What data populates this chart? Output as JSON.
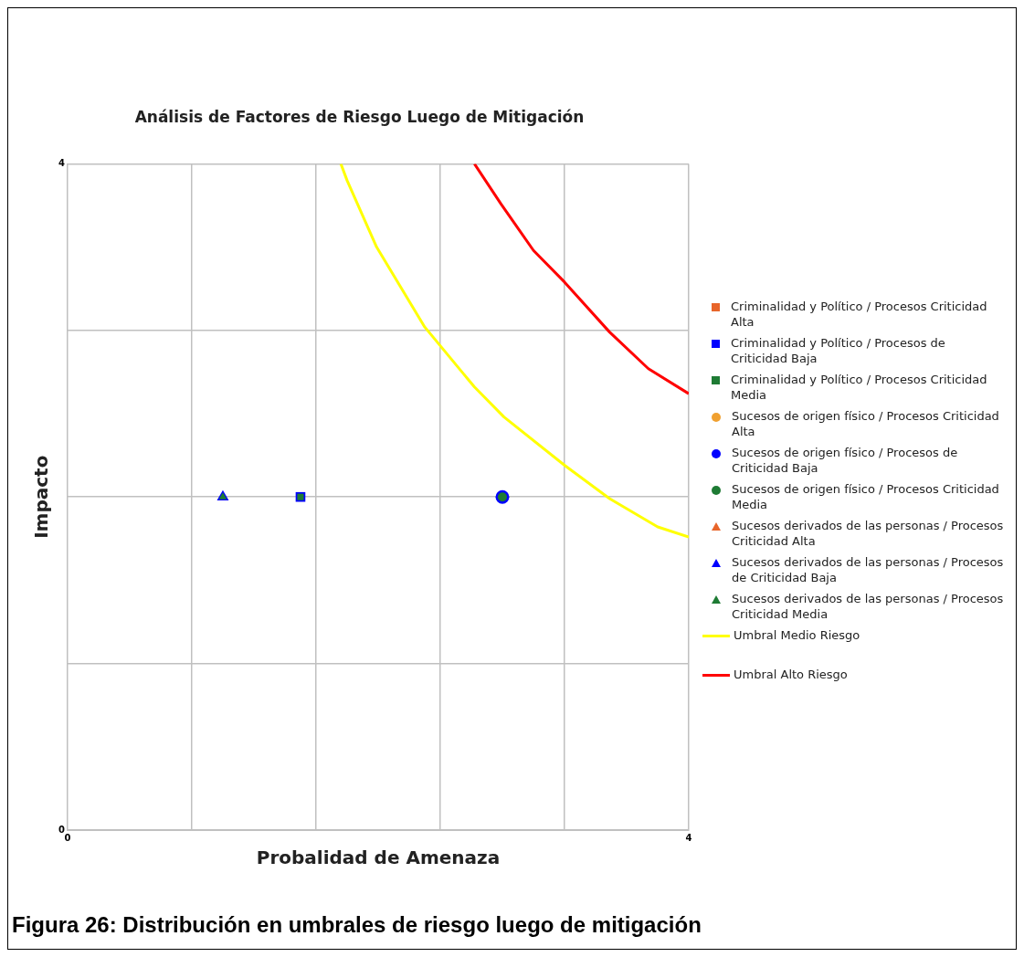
{
  "chart_data": {
    "type": "scatter",
    "title": "Análisis de Factores de Riesgo Luego de Mitigación",
    "xlabel": "Probalidad de Amenaza",
    "ylabel": "Impacto",
    "xlim": [
      0,
      4
    ],
    "xticks": [
      0,
      {
        "value": 0.8,
        "label": null
      },
      {
        "value": 1.6,
        "label": null
      },
      {
        "value": 2.4,
        "label": null
      },
      {
        "value": 3.2,
        "label": null
      },
      4
    ],
    "ylim": [
      0,
      4
    ],
    "yticks": [
      0,
      {
        "value": 1,
        "label": null
      },
      {
        "value": 2,
        "label": null
      },
      {
        "value": 3,
        "label": null
      },
      4
    ],
    "grid": true,
    "legend": "right",
    "annotations": [
      "Figura 26: Distribución en umbrales de riesgo luego de mitigación"
    ],
    "series": [
      {
        "name": "Criminalidad y Político / Procesos Criticidad Alta",
        "color": "#e8652a",
        "marker": "square"
      },
      {
        "name": "Criminalidad y Político / Procesos de Criticidad Baja",
        "color": "#0000ff",
        "marker": "square",
        "x": [
          1.5
        ],
        "values": [
          2
        ]
      },
      {
        "name": "Criminalidad y Político / Procesos Criticidad Media",
        "color": "#1e7b34",
        "marker": "square",
        "x": [
          1.5
        ],
        "values": [
          2
        ]
      },
      {
        "name": "Sucesos de origen físico / Procesos Criticidad Alta",
        "color": "#f0a030",
        "marker": "circle"
      },
      {
        "name": "Sucesos de origen físico / Procesos de Criticidad Baja",
        "color": "#0000ff",
        "marker": "circle",
        "x": [
          2.8
        ],
        "values": [
          2
        ]
      },
      {
        "name": "Sucesos de origen físico / Procesos Criticidad Media",
        "color": "#1e7b34",
        "marker": "circle",
        "x": [
          2.8
        ],
        "values": [
          2
        ]
      },
      {
        "name": "Sucesos derivados de las personas / Procesos Criticidad Alta",
        "color": "#e8652a",
        "marker": "triangle"
      },
      {
        "name": "Sucesos derivados de las personas / Procesos de Criticidad Baja",
        "color": "#0000ff",
        "marker": "triangle",
        "x": [
          1.0
        ],
        "values": [
          2
        ]
      },
      {
        "name": "Sucesos derivados de las personas / Procesos Criticidad Media",
        "color": "#1e7b34",
        "marker": "triangle",
        "x": [
          1.0
        ],
        "values": [
          2
        ]
      },
      {
        "name": "Umbral Medio Riesgo",
        "type": "line",
        "color": "#ffff00",
        "marker": "none",
        "x": [
          1.76,
          1.8,
          1.99,
          2.3,
          2.62,
          2.81,
          3.2,
          3.49,
          3.8,
          4.0
        ],
        "values": [
          4.0,
          3.9,
          3.5,
          3.02,
          2.66,
          2.48,
          2.19,
          1.99,
          1.82,
          1.76
        ]
      },
      {
        "name": "Umbral Alto Riesgo",
        "type": "line",
        "color": "#ff0000",
        "marker": "none",
        "x": [
          2.62,
          2.79,
          3.0,
          3.2,
          3.49,
          3.74,
          4.0
        ],
        "values": [
          4.0,
          3.76,
          3.48,
          3.29,
          2.99,
          2.77,
          2.62
        ]
      }
    ]
  }
}
